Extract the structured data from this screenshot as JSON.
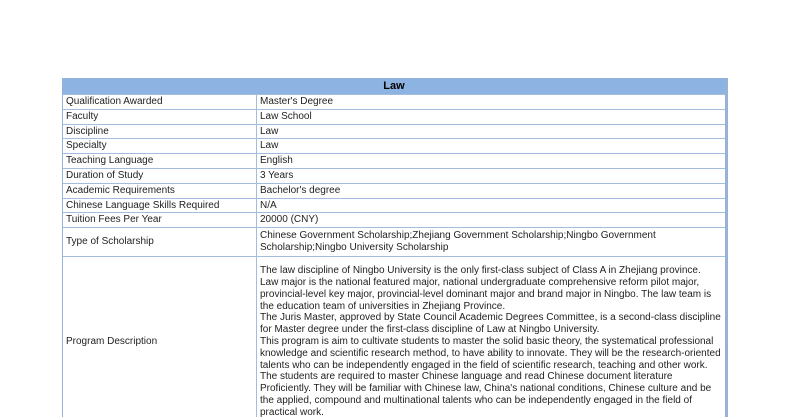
{
  "table": {
    "title": "Law",
    "colors": {
      "header_bg": "#8db3e2",
      "border_outer": "#95b3d7",
      "border_inner": "#a3bedd",
      "text": "#1f1f1f"
    },
    "rows": [
      {
        "label": "Qualification Awarded",
        "value": "Master's Degree"
      },
      {
        "label": "Faculty",
        "value": "Law School"
      },
      {
        "label": "Discipline",
        "value": "Law"
      },
      {
        "label": "Specialty",
        "value": "Law"
      },
      {
        "label": "Teaching Language",
        "value": "English"
      },
      {
        "label": "Duration of Study",
        "value": "3 Years"
      },
      {
        "label": "Academic Requirements",
        "value": "Bachelor's degree"
      },
      {
        "label": "Chinese Language Skills Required",
        "value": "N/A"
      },
      {
        "label": "Tuition Fees Per Year",
        "value": "20000 (CNY)"
      },
      {
        "label": "Type of Scholarship",
        "value": "Chinese Government Scholarship;Zhejiang Government Scholarship;Ningbo Government Scholarship;Ningbo University Scholarship"
      },
      {
        "label": "Program Description",
        "value": "The law discipline of Ningbo University is the only first-class subject of Class A in Zhejiang province. Law major is the national featured major, national undergraduate comprehensive reform pilot major, provincial-level key major, provincial-level dominant major and brand major in Ningbo. The law team is the education team of universities in Zhejiang Province.\nThe Juris Master, approved by State Council Academic Degrees Committee, is a second-class discipline for Master degree under the first-class discipline of Law at Ningbo University.\nThis program is aim to cultivate students to master the solid basic theory, the systematical professional knowledge and scientific research method, to have ability to innovate. They will be the research-oriented talents who can be independently engaged in the field of scientific research, teaching and other work. The students are required to master Chinese language and read Chinese document literature Proficiently. They will be familiar with Chinese law, China's national conditions, Chinese culture and be the applied, compound and multinational talents who can be independently engaged in the field of practical work."
      }
    ]
  }
}
